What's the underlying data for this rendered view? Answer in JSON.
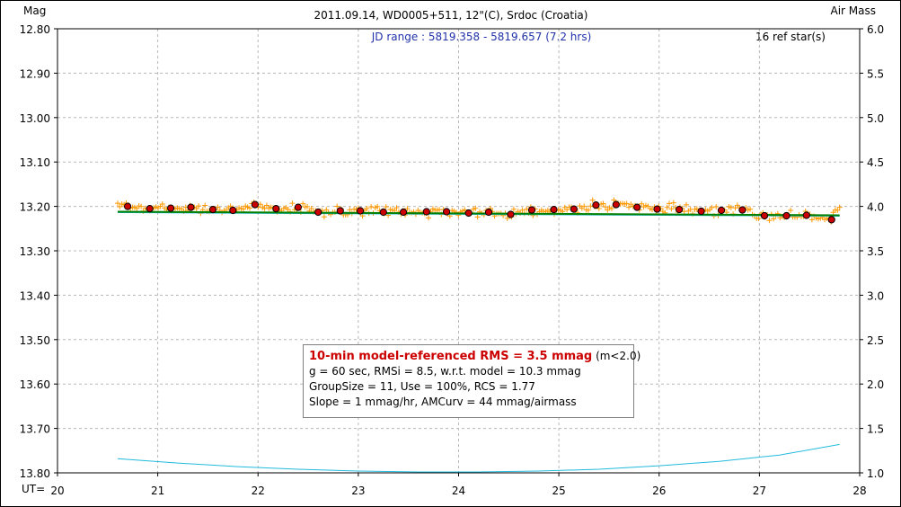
{
  "chart_data": {
    "type": "scatter",
    "title": "2011.09.14, WD0005+511, 12\"(C), Srdoc (Croatia)",
    "ylabel_left": "Mag",
    "ylabel_right": "Air Mass",
    "xlabel": "UT=",
    "jd_range": "JD range : 5819.358 - 5819.657 (7.2 hrs)",
    "ref_stars": "16 ref star(s)",
    "xlim": [
      20,
      28
    ],
    "ylim_left": [
      12.8,
      13.8
    ],
    "ylim_right": [
      1.0,
      6.0
    ],
    "x_ticks": [
      "20",
      "21",
      "22",
      "23",
      "24",
      "25",
      "26",
      "27",
      "28"
    ],
    "y_left_ticks": [
      "12.80",
      "12.90",
      "13.00",
      "13.10",
      "13.20",
      "13.30",
      "13.40",
      "13.50",
      "13.60",
      "13.70",
      "13.80"
    ],
    "y_right_ticks": [
      "6.0",
      "5.5",
      "5.0",
      "4.5",
      "4.0",
      "3.5",
      "3.0",
      "2.5",
      "2.0",
      "1.5",
      "1.0"
    ],
    "grid": true,
    "series": [
      {
        "name": "individual",
        "marker": "plus",
        "color": "#ff9900",
        "x_range": [
          20.6,
          27.8
        ],
        "n_points": 340,
        "base_mag": 13.21,
        "scatter_mag": 0.008
      },
      {
        "name": "binned",
        "marker": "circle",
        "color": "#cc0000",
        "x": [
          20.7,
          20.92,
          21.13,
          21.33,
          21.55,
          21.75,
          21.97,
          22.18,
          22.4,
          22.6,
          22.82,
          23.02,
          23.25,
          23.45,
          23.68,
          23.88,
          24.1,
          24.3,
          24.52,
          24.73,
          24.95,
          25.15,
          25.37,
          25.57,
          25.78,
          25.98,
          26.2,
          26.42,
          26.62,
          26.83,
          27.05,
          27.27,
          27.47,
          27.72
        ],
        "y": [
          13.2,
          13.205,
          13.204,
          13.202,
          13.207,
          13.209,
          13.196,
          13.205,
          13.202,
          13.213,
          13.21,
          13.21,
          13.213,
          13.213,
          13.212,
          13.212,
          13.215,
          13.213,
          13.218,
          13.208,
          13.207,
          13.206,
          13.197,
          13.196,
          13.202,
          13.206,
          13.207,
          13.211,
          13.209,
          13.208,
          13.221,
          13.221,
          13.22,
          13.23
        ]
      },
      {
        "name": "model",
        "marker": "line",
        "color": "#008000",
        "x": [
          20.6,
          27.8
        ],
        "y": [
          13.212,
          13.22
        ]
      },
      {
        "name": "air_mass",
        "marker": "line",
        "color": "#22bbdd",
        "axis": "right",
        "x": [
          20.6,
          21.2,
          21.8,
          22.4,
          23.0,
          23.6,
          24.2,
          24.8,
          25.4,
          26.0,
          26.6,
          27.2,
          27.8
        ],
        "y": [
          1.16,
          1.11,
          1.07,
          1.04,
          1.02,
          1.01,
          1.01,
          1.02,
          1.04,
          1.08,
          1.13,
          1.2,
          1.32
        ]
      }
    ]
  },
  "stats": {
    "line1_red": "10-min model-referenced RMS = 3.5 mmag",
    "line1_rest": " (m<2.0)",
    "line2": "g = 60 sec, RMSi = 8.5, w.r.t. model = 10.3 mmag",
    "line3": "GroupSize = 11, Use = 100%, RCS = 1.77",
    "line4": "Slope = 1 mmag/hr, AMCurv = 44 mmag/airmass"
  }
}
